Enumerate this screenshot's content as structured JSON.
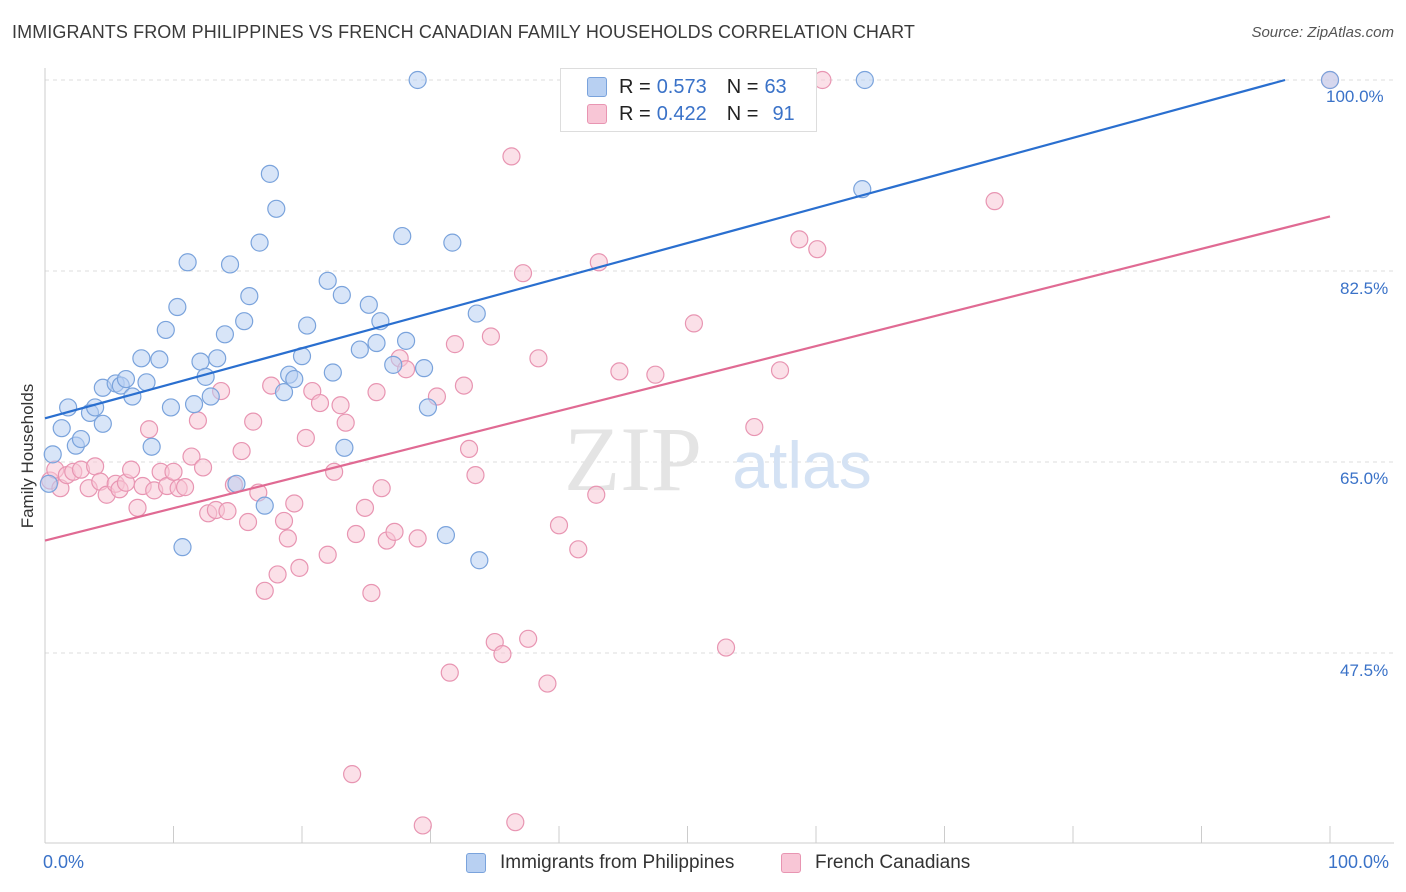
{
  "title": "IMMIGRANTS FROM PHILIPPINES VS FRENCH CANADIAN FAMILY HOUSEHOLDS CORRELATION CHART",
  "source": "Source: ZipAtlas.com",
  "watermark": {
    "zip": "ZIP",
    "atlas": "atlas"
  },
  "legend": {
    "series1": {
      "r_label": "R =",
      "r_value": "0.573",
      "n_label": "N =",
      "n_value": "63"
    },
    "series2": {
      "r_label": "R =",
      "r_value": "0.422",
      "n_label": "N =",
      "n_value": "91"
    }
  },
  "bottom_legend": {
    "series1": "Immigrants from Philippines",
    "series2": "French Canadians"
  },
  "axes": {
    "x_min_label": "0.0%",
    "x_max_label": "100.0%",
    "y_title": "Family Households",
    "y_ticks": [
      {
        "value": 100.0,
        "label": "100.0%"
      },
      {
        "value": 82.5,
        "label": "82.5%"
      },
      {
        "value": 65.0,
        "label": "65.0%"
      },
      {
        "value": 47.5,
        "label": "47.5%"
      }
    ]
  },
  "colors": {
    "blue_fill": "#b8d0f2",
    "blue_stroke": "#7aa3dc",
    "blue_line": "#2a6fcf",
    "pink_fill": "#f8c6d6",
    "pink_stroke": "#e895b2",
    "pink_line": "#e06a93",
    "label_blue": "#3a72c8",
    "grid": "#dddddd"
  },
  "chart_data": {
    "type": "scatter",
    "xlim": [
      0,
      100
    ],
    "ylim": [
      30.5,
      101.5
    ],
    "grid": true,
    "legend_position": "top-center",
    "series": [
      {
        "name": "Immigrants from Philippines",
        "color": "#7aa3dc",
        "trend": {
          "x": [
            0,
            96.5
          ],
          "y": [
            69.0,
            100.0
          ]
        },
        "points": [
          [
            0.3,
            63.0
          ],
          [
            0.6,
            65.7
          ],
          [
            1.3,
            68.1
          ],
          [
            1.8,
            70.0
          ],
          [
            2.4,
            66.5
          ],
          [
            2.8,
            67.1
          ],
          [
            3.5,
            69.5
          ],
          [
            3.9,
            70.0
          ],
          [
            4.5,
            68.5
          ],
          [
            4.5,
            71.8
          ],
          [
            5.5,
            72.2
          ],
          [
            5.9,
            72.0
          ],
          [
            6.3,
            72.6
          ],
          [
            6.8,
            71.0
          ],
          [
            7.5,
            74.5
          ],
          [
            7.9,
            72.3
          ],
          [
            8.3,
            66.4
          ],
          [
            8.9,
            74.4
          ],
          [
            9.4,
            77.1
          ],
          [
            9.8,
            70.0
          ],
          [
            10.3,
            79.2
          ],
          [
            10.7,
            57.2
          ],
          [
            11.1,
            83.3
          ],
          [
            11.6,
            70.3
          ],
          [
            12.1,
            74.2
          ],
          [
            12.5,
            72.8
          ],
          [
            12.9,
            71.0
          ],
          [
            13.4,
            74.5
          ],
          [
            14.0,
            76.7
          ],
          [
            14.4,
            83.1
          ],
          [
            14.9,
            63.0
          ],
          [
            15.5,
            77.9
          ],
          [
            15.9,
            80.2
          ],
          [
            16.7,
            85.1
          ],
          [
            17.1,
            61.0
          ],
          [
            17.5,
            91.4
          ],
          [
            18.0,
            88.2
          ],
          [
            18.6,
            71.4
          ],
          [
            19.0,
            73.0
          ],
          [
            19.4,
            72.6
          ],
          [
            20.0,
            74.7
          ],
          [
            20.4,
            77.5
          ],
          [
            22.0,
            81.6
          ],
          [
            22.4,
            73.2
          ],
          [
            23.1,
            80.3
          ],
          [
            23.3,
            66.3
          ],
          [
            24.5,
            75.3
          ],
          [
            25.2,
            79.4
          ],
          [
            25.8,
            75.9
          ],
          [
            26.1,
            77.9
          ],
          [
            27.1,
            73.9
          ],
          [
            27.8,
            85.7
          ],
          [
            28.1,
            76.1
          ],
          [
            29.0,
            100.0
          ],
          [
            29.5,
            73.6
          ],
          [
            29.8,
            70.0
          ],
          [
            31.2,
            58.3
          ],
          [
            31.7,
            85.1
          ],
          [
            33.6,
            78.6
          ],
          [
            33.8,
            56.0
          ],
          [
            63.6,
            90.0
          ],
          [
            63.8,
            100.0
          ],
          [
            100.0,
            100.0
          ]
        ]
      },
      {
        "name": "French Canadians",
        "color": "#e895b2",
        "trend": {
          "x": [
            0,
            100
          ],
          "y": [
            57.8,
            87.5
          ]
        },
        "points": [
          [
            0.4,
            63.3
          ],
          [
            0.8,
            64.3
          ],
          [
            1.2,
            62.6
          ],
          [
            1.7,
            63.8
          ],
          [
            2.2,
            64.1
          ],
          [
            2.8,
            64.3
          ],
          [
            3.4,
            62.6
          ],
          [
            3.9,
            64.6
          ],
          [
            4.3,
            63.2
          ],
          [
            4.8,
            62.0
          ],
          [
            5.5,
            63.0
          ],
          [
            5.8,
            62.5
          ],
          [
            6.3,
            63.1
          ],
          [
            6.7,
            64.3
          ],
          [
            7.2,
            60.8
          ],
          [
            7.6,
            62.8
          ],
          [
            8.1,
            68.0
          ],
          [
            8.5,
            62.4
          ],
          [
            9.0,
            64.1
          ],
          [
            9.5,
            62.8
          ],
          [
            10.0,
            64.1
          ],
          [
            10.4,
            62.6
          ],
          [
            10.9,
            62.7
          ],
          [
            11.4,
            65.5
          ],
          [
            11.9,
            68.8
          ],
          [
            12.3,
            64.5
          ],
          [
            12.7,
            60.3
          ],
          [
            13.3,
            60.6
          ],
          [
            13.7,
            71.5
          ],
          [
            14.2,
            60.5
          ],
          [
            14.7,
            62.9
          ],
          [
            15.3,
            66.0
          ],
          [
            15.8,
            59.5
          ],
          [
            16.2,
            68.7
          ],
          [
            16.6,
            62.2
          ],
          [
            17.1,
            53.2
          ],
          [
            17.6,
            72.0
          ],
          [
            18.1,
            54.7
          ],
          [
            18.6,
            59.6
          ],
          [
            18.9,
            58.0
          ],
          [
            19.4,
            61.2
          ],
          [
            19.8,
            55.3
          ],
          [
            20.3,
            67.2
          ],
          [
            20.8,
            71.5
          ],
          [
            21.4,
            70.4
          ],
          [
            22.0,
            56.5
          ],
          [
            22.5,
            64.1
          ],
          [
            23.0,
            70.2
          ],
          [
            23.4,
            68.6
          ],
          [
            24.2,
            58.4
          ],
          [
            24.9,
            60.8
          ],
          [
            25.4,
            53.0
          ],
          [
            25.8,
            71.4
          ],
          [
            26.2,
            62.6
          ],
          [
            26.6,
            57.8
          ],
          [
            27.2,
            58.6
          ],
          [
            27.6,
            74.5
          ],
          [
            28.1,
            73.5
          ],
          [
            29.0,
            58.0
          ],
          [
            29.4,
            31.7
          ],
          [
            30.5,
            71.0
          ],
          [
            31.5,
            45.7
          ],
          [
            31.9,
            75.8
          ],
          [
            32.6,
            72.0
          ],
          [
            33.0,
            66.2
          ],
          [
            33.5,
            63.8
          ],
          [
            34.7,
            76.5
          ],
          [
            35.0,
            48.5
          ],
          [
            35.6,
            47.4
          ],
          [
            36.3,
            93.0
          ],
          [
            36.6,
            32.0
          ],
          [
            37.2,
            82.3
          ],
          [
            37.6,
            48.8
          ],
          [
            38.4,
            74.5
          ],
          [
            39.1,
            44.7
          ],
          [
            40.0,
            59.2
          ],
          [
            41.5,
            57.0
          ],
          [
            42.9,
            62.0
          ],
          [
            43.1,
            83.3
          ],
          [
            44.7,
            73.3
          ],
          [
            47.5,
            73.0
          ],
          [
            50.5,
            77.7
          ],
          [
            53.0,
            48.0
          ],
          [
            55.2,
            68.2
          ],
          [
            57.2,
            73.4
          ],
          [
            58.7,
            85.4
          ],
          [
            60.1,
            84.5
          ],
          [
            60.5,
            100.0
          ],
          [
            73.9,
            88.9
          ],
          [
            100.0,
            100.0
          ],
          [
            23.9,
            36.4
          ]
        ]
      }
    ]
  }
}
